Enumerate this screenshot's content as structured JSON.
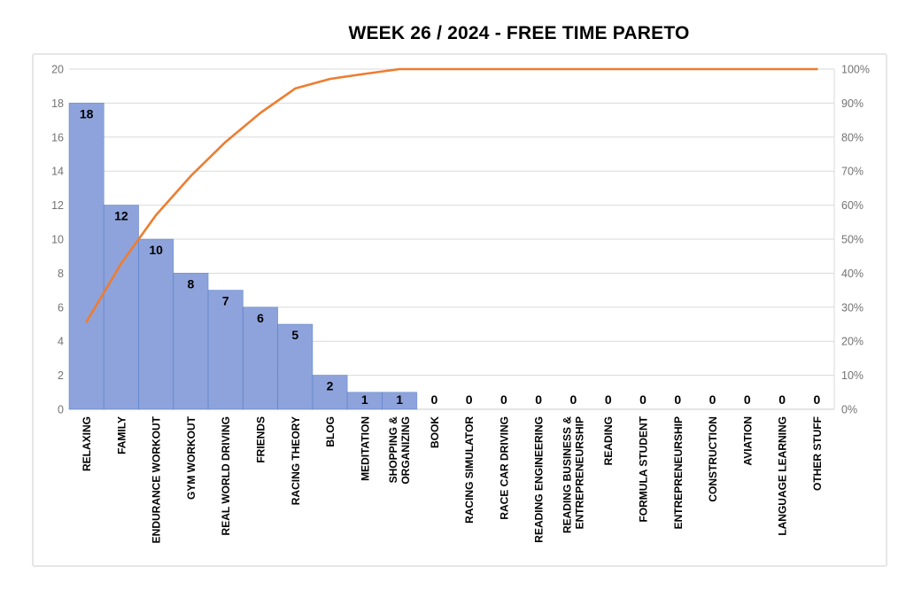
{
  "chart_data": {
    "type": "bar",
    "subtype": "pareto",
    "title": "WEEK 26 / 2024  - FREE TIME PARETO",
    "categories": [
      "RELAXING",
      "FAMILY",
      "ENDURANCE WORKOUT",
      "GYM WORKOUT",
      "REAL WORLD DRIVING",
      "FRIENDS",
      "RACING THEORY",
      "BLOG",
      "MEDITATION",
      "SHOPPING &\nORGANIZING",
      "BOOK",
      "RACING SIMULATOR",
      "RACE CAR DRIVING",
      "READING ENGINEERING",
      "READING BUSINESS &\nENTREPRENEURSHIP",
      "READING",
      "FORMULA STUDENT",
      "ENTREPRENEURSHIP",
      "CONSTRUCTION",
      "AVIATION",
      "LANGUAGE LEARNING",
      "OTHER STUFF"
    ],
    "series": [
      {
        "name": "hours-bars",
        "type": "bar",
        "values": [
          18,
          12,
          10,
          8,
          7,
          6,
          5,
          2,
          1,
          1,
          0,
          0,
          0,
          0,
          0,
          0,
          0,
          0,
          0,
          0,
          0,
          0
        ]
      },
      {
        "name": "cumulative-percent-line",
        "type": "line",
        "values": [
          25.7,
          42.9,
          57.1,
          68.6,
          78.6,
          87.1,
          94.3,
          97.1,
          98.6,
          100,
          100,
          100,
          100,
          100,
          100,
          100,
          100,
          100,
          100,
          100,
          100,
          100
        ]
      }
    ],
    "data_labels": [
      "18",
      "12",
      "10",
      "8",
      "7",
      "6",
      "5",
      "2",
      "1",
      "1",
      "0",
      "0",
      "0",
      "0",
      "0",
      "0",
      "0",
      "0",
      "0",
      "0",
      "0",
      "0"
    ],
    "left_axis": {
      "min": 0,
      "max": 20,
      "step": 2,
      "ticks": [
        "0",
        "2",
        "4",
        "6",
        "8",
        "10",
        "12",
        "14",
        "16",
        "18",
        "20"
      ]
    },
    "right_axis": {
      "min": 0,
      "max": 100,
      "step": 10,
      "ticks": [
        "0%",
        "10%",
        "20%",
        "30%",
        "40%",
        "50%",
        "60%",
        "70%",
        "80%",
        "90%",
        "100%"
      ]
    },
    "grid": true,
    "legend": "none",
    "colors": {
      "bar_fill": "#8EA3DB",
      "bar_border": "#4472C4",
      "line": "#ED7D31",
      "gridline": "#DADADA",
      "axis_line": "#C9C9C9",
      "tick_text": "#737373",
      "label_text": "#000000",
      "frame_border": "#E6E6E6",
      "background": "#FFFFFF"
    }
  }
}
